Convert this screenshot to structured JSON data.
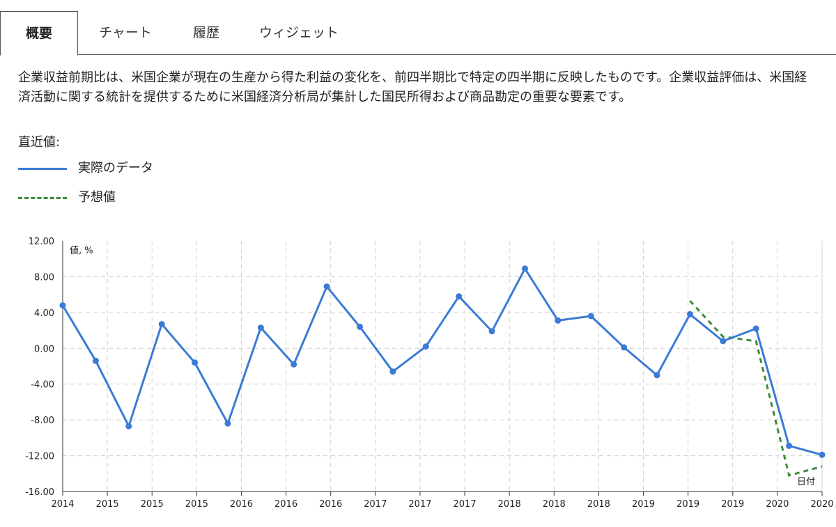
{
  "tabs": [
    {
      "label": "概要",
      "active": true
    },
    {
      "label": "チャート",
      "active": false
    },
    {
      "label": "履歴",
      "active": false
    },
    {
      "label": "ウィジェット",
      "active": false
    }
  ],
  "description": "企業収益前期比は、米国企業が現在の生産から得た利益の変化を、前四半期比で特定の四半期に反映したものです。企業収益評価は、米国経済活動に関する統計を提供するために米国経済分析局が集計した国民所得および商品勘定の重要な要素です。",
  "recent_label": "直近値:",
  "legend": {
    "actual": "実際のデータ",
    "forecast": "予想値"
  },
  "colors": {
    "actual": "#3a7bd5",
    "forecast": "#3d8b3d",
    "grid": "#d0d0d0",
    "axis": "#333333"
  },
  "chart_data": {
    "type": "line",
    "ylabel": "値, %",
    "xlabel": "日付",
    "ylim": [
      -16,
      12
    ],
    "y_ticks": [
      "12.00",
      "8.00",
      "4.00",
      "0.00",
      "-4.00",
      "-8.00",
      "-12.00",
      "-16.00"
    ],
    "x_tick_labels": [
      "2014",
      "2015",
      "2015",
      "2015",
      "2016",
      "2016",
      "2016",
      "2017",
      "2017",
      "2017",
      "2018",
      "2018",
      "2018",
      "2019",
      "2019",
      "2019",
      "2020",
      "2020"
    ],
    "grid": true,
    "series": [
      {
        "name": "実際のデータ",
        "style": "solid",
        "values": [
          4.8,
          -1.4,
          -8.7,
          2.7,
          -1.6,
          -8.4,
          2.3,
          -1.8,
          6.9,
          2.4,
          -2.6,
          0.2,
          5.8,
          1.9,
          8.9,
          3.1,
          3.6,
          0.1,
          -3.0,
          3.8,
          0.8,
          2.2,
          -10.9,
          -11.9
        ]
      },
      {
        "name": "予想値",
        "style": "dashed",
        "start_index": 19,
        "values": [
          5.3,
          1.3,
          0.8,
          -14.2,
          -13.2
        ]
      }
    ]
  }
}
